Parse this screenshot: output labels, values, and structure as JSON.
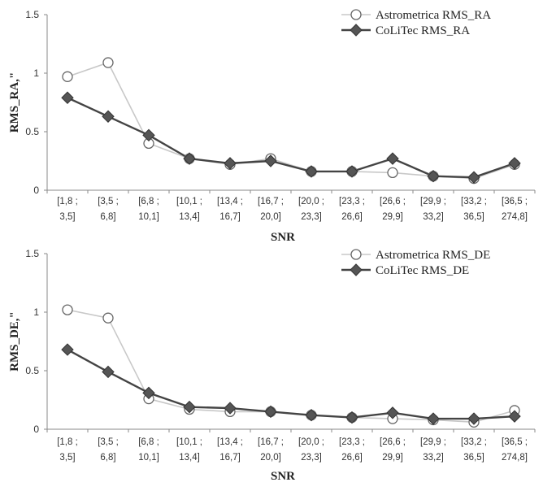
{
  "chart_data": [
    {
      "type": "line",
      "ylabel": "RMS_RA,\"",
      "xlabel": "SNR",
      "ylim": [
        0,
        1.5
      ],
      "yticks": [
        "0",
        "0.5",
        "1",
        "1.5"
      ],
      "categories": [
        [
          "[1,8 ;",
          "3,5]"
        ],
        [
          "[3,5 ;",
          "6,8]"
        ],
        [
          "[6,8 ;",
          "10,1]"
        ],
        [
          "[10,1 ;",
          "13,4]"
        ],
        [
          "[13,4 ;",
          "16,7]"
        ],
        [
          "[16,7 ;",
          "20,0]"
        ],
        [
          "[20,0 ;",
          "23,3]"
        ],
        [
          "[23,3 ;",
          "26,6]"
        ],
        [
          "[26,6 ;",
          "29,9]"
        ],
        [
          "[29,9 ;",
          "33,2]"
        ],
        [
          "[33,2 ;",
          "36,5]"
        ],
        [
          "[36,5 ;",
          "274,8]"
        ]
      ],
      "series": [
        {
          "name": "Astrometrica RMS_RA",
          "marker": "circle",
          "color": "#c8c8c8",
          "values": [
            0.97,
            1.09,
            0.4,
            0.27,
            0.22,
            0.27,
            0.16,
            0.16,
            0.15,
            0.12,
            0.1,
            0.22
          ]
        },
        {
          "name": "CoLiTec RMS_RA",
          "marker": "diamond",
          "color": "#444444",
          "values": [
            0.79,
            0.63,
            0.47,
            0.27,
            0.23,
            0.25,
            0.16,
            0.16,
            0.27,
            0.12,
            0.11,
            0.23
          ]
        }
      ]
    },
    {
      "type": "line",
      "ylabel": "RMS_DE,\"",
      "xlabel": "SNR",
      "ylim": [
        0,
        1.5
      ],
      "yticks": [
        "0",
        "0.5",
        "1",
        "1.5"
      ],
      "categories": [
        [
          "[1,8 ;",
          "3,5]"
        ],
        [
          "[3,5 ;",
          "6,8]"
        ],
        [
          "[6,8 ;",
          "10,1]"
        ],
        [
          "[10,1 ;",
          "13,4]"
        ],
        [
          "[13,4 ;",
          "16,7]"
        ],
        [
          "[16,7 ;",
          "20,0]"
        ],
        [
          "[20,0 ;",
          "23,3]"
        ],
        [
          "[23,3 ;",
          "26,6]"
        ],
        [
          "[26,6 ;",
          "29,9]"
        ],
        [
          "[29,9 ;",
          "33,2]"
        ],
        [
          "[33,2 ;",
          "36,5]"
        ],
        [
          "[36,5 ;",
          "274,8]"
        ]
      ],
      "series": [
        {
          "name": "Astrometrica RMS_DE",
          "marker": "circle",
          "color": "#c8c8c8",
          "values": [
            1.02,
            0.95,
            0.26,
            0.17,
            0.15,
            0.15,
            0.12,
            0.1,
            0.09,
            0.08,
            0.06,
            0.16
          ]
        },
        {
          "name": "CoLiTec RMS_DE",
          "marker": "diamond",
          "color": "#444444",
          "values": [
            0.68,
            0.49,
            0.31,
            0.19,
            0.18,
            0.15,
            0.12,
            0.1,
            0.14,
            0.09,
            0.09,
            0.11
          ]
        }
      ]
    }
  ]
}
